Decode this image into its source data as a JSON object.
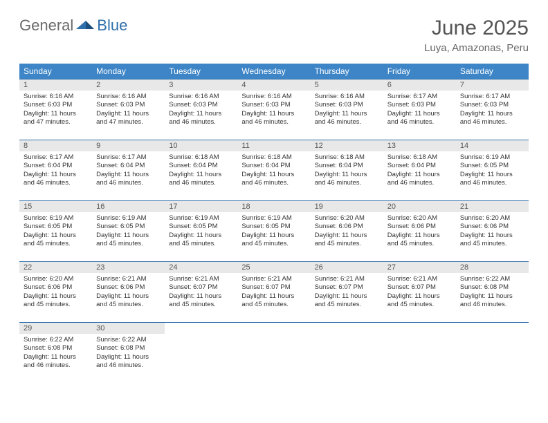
{
  "brand": {
    "part1": "General",
    "part2": "Blue"
  },
  "title": {
    "month": "June 2025",
    "location": "Luya, Amazonas, Peru"
  },
  "weekdays": [
    "Sunday",
    "Monday",
    "Tuesday",
    "Wednesday",
    "Thursday",
    "Friday",
    "Saturday"
  ],
  "colors": {
    "header_bg": "#3d85c6",
    "header_text": "#ffffff",
    "rule": "#2f6fab",
    "daynum_bg": "#e8e8e8",
    "text": "#333333"
  },
  "typography": {
    "month_fontsize": 30,
    "location_fontsize": 15,
    "weekday_fontsize": 12,
    "daynum_fontsize": 11,
    "body_fontsize": 9.5
  },
  "weeks": [
    [
      {
        "n": "1",
        "sunrise": "Sunrise: 6:16 AM",
        "sunset": "Sunset: 6:03 PM",
        "daylight": "Daylight: 11 hours and 47 minutes."
      },
      {
        "n": "2",
        "sunrise": "Sunrise: 6:16 AM",
        "sunset": "Sunset: 6:03 PM",
        "daylight": "Daylight: 11 hours and 47 minutes."
      },
      {
        "n": "3",
        "sunrise": "Sunrise: 6:16 AM",
        "sunset": "Sunset: 6:03 PM",
        "daylight": "Daylight: 11 hours and 46 minutes."
      },
      {
        "n": "4",
        "sunrise": "Sunrise: 6:16 AM",
        "sunset": "Sunset: 6:03 PM",
        "daylight": "Daylight: 11 hours and 46 minutes."
      },
      {
        "n": "5",
        "sunrise": "Sunrise: 6:16 AM",
        "sunset": "Sunset: 6:03 PM",
        "daylight": "Daylight: 11 hours and 46 minutes."
      },
      {
        "n": "6",
        "sunrise": "Sunrise: 6:17 AM",
        "sunset": "Sunset: 6:03 PM",
        "daylight": "Daylight: 11 hours and 46 minutes."
      },
      {
        "n": "7",
        "sunrise": "Sunrise: 6:17 AM",
        "sunset": "Sunset: 6:03 PM",
        "daylight": "Daylight: 11 hours and 46 minutes."
      }
    ],
    [
      {
        "n": "8",
        "sunrise": "Sunrise: 6:17 AM",
        "sunset": "Sunset: 6:04 PM",
        "daylight": "Daylight: 11 hours and 46 minutes."
      },
      {
        "n": "9",
        "sunrise": "Sunrise: 6:17 AM",
        "sunset": "Sunset: 6:04 PM",
        "daylight": "Daylight: 11 hours and 46 minutes."
      },
      {
        "n": "10",
        "sunrise": "Sunrise: 6:18 AM",
        "sunset": "Sunset: 6:04 PM",
        "daylight": "Daylight: 11 hours and 46 minutes."
      },
      {
        "n": "11",
        "sunrise": "Sunrise: 6:18 AM",
        "sunset": "Sunset: 6:04 PM",
        "daylight": "Daylight: 11 hours and 46 minutes."
      },
      {
        "n": "12",
        "sunrise": "Sunrise: 6:18 AM",
        "sunset": "Sunset: 6:04 PM",
        "daylight": "Daylight: 11 hours and 46 minutes."
      },
      {
        "n": "13",
        "sunrise": "Sunrise: 6:18 AM",
        "sunset": "Sunset: 6:04 PM",
        "daylight": "Daylight: 11 hours and 46 minutes."
      },
      {
        "n": "14",
        "sunrise": "Sunrise: 6:19 AM",
        "sunset": "Sunset: 6:05 PM",
        "daylight": "Daylight: 11 hours and 46 minutes."
      }
    ],
    [
      {
        "n": "15",
        "sunrise": "Sunrise: 6:19 AM",
        "sunset": "Sunset: 6:05 PM",
        "daylight": "Daylight: 11 hours and 45 minutes."
      },
      {
        "n": "16",
        "sunrise": "Sunrise: 6:19 AM",
        "sunset": "Sunset: 6:05 PM",
        "daylight": "Daylight: 11 hours and 45 minutes."
      },
      {
        "n": "17",
        "sunrise": "Sunrise: 6:19 AM",
        "sunset": "Sunset: 6:05 PM",
        "daylight": "Daylight: 11 hours and 45 minutes."
      },
      {
        "n": "18",
        "sunrise": "Sunrise: 6:19 AM",
        "sunset": "Sunset: 6:05 PM",
        "daylight": "Daylight: 11 hours and 45 minutes."
      },
      {
        "n": "19",
        "sunrise": "Sunrise: 6:20 AM",
        "sunset": "Sunset: 6:06 PM",
        "daylight": "Daylight: 11 hours and 45 minutes."
      },
      {
        "n": "20",
        "sunrise": "Sunrise: 6:20 AM",
        "sunset": "Sunset: 6:06 PM",
        "daylight": "Daylight: 11 hours and 45 minutes."
      },
      {
        "n": "21",
        "sunrise": "Sunrise: 6:20 AM",
        "sunset": "Sunset: 6:06 PM",
        "daylight": "Daylight: 11 hours and 45 minutes."
      }
    ],
    [
      {
        "n": "22",
        "sunrise": "Sunrise: 6:20 AM",
        "sunset": "Sunset: 6:06 PM",
        "daylight": "Daylight: 11 hours and 45 minutes."
      },
      {
        "n": "23",
        "sunrise": "Sunrise: 6:21 AM",
        "sunset": "Sunset: 6:06 PM",
        "daylight": "Daylight: 11 hours and 45 minutes."
      },
      {
        "n": "24",
        "sunrise": "Sunrise: 6:21 AM",
        "sunset": "Sunset: 6:07 PM",
        "daylight": "Daylight: 11 hours and 45 minutes."
      },
      {
        "n": "25",
        "sunrise": "Sunrise: 6:21 AM",
        "sunset": "Sunset: 6:07 PM",
        "daylight": "Daylight: 11 hours and 45 minutes."
      },
      {
        "n": "26",
        "sunrise": "Sunrise: 6:21 AM",
        "sunset": "Sunset: 6:07 PM",
        "daylight": "Daylight: 11 hours and 45 minutes."
      },
      {
        "n": "27",
        "sunrise": "Sunrise: 6:21 AM",
        "sunset": "Sunset: 6:07 PM",
        "daylight": "Daylight: 11 hours and 45 minutes."
      },
      {
        "n": "28",
        "sunrise": "Sunrise: 6:22 AM",
        "sunset": "Sunset: 6:08 PM",
        "daylight": "Daylight: 11 hours and 46 minutes."
      }
    ],
    [
      {
        "n": "29",
        "sunrise": "Sunrise: 6:22 AM",
        "sunset": "Sunset: 6:08 PM",
        "daylight": "Daylight: 11 hours and 46 minutes."
      },
      {
        "n": "30",
        "sunrise": "Sunrise: 6:22 AM",
        "sunset": "Sunset: 6:08 PM",
        "daylight": "Daylight: 11 hours and 46 minutes."
      },
      null,
      null,
      null,
      null,
      null
    ]
  ]
}
